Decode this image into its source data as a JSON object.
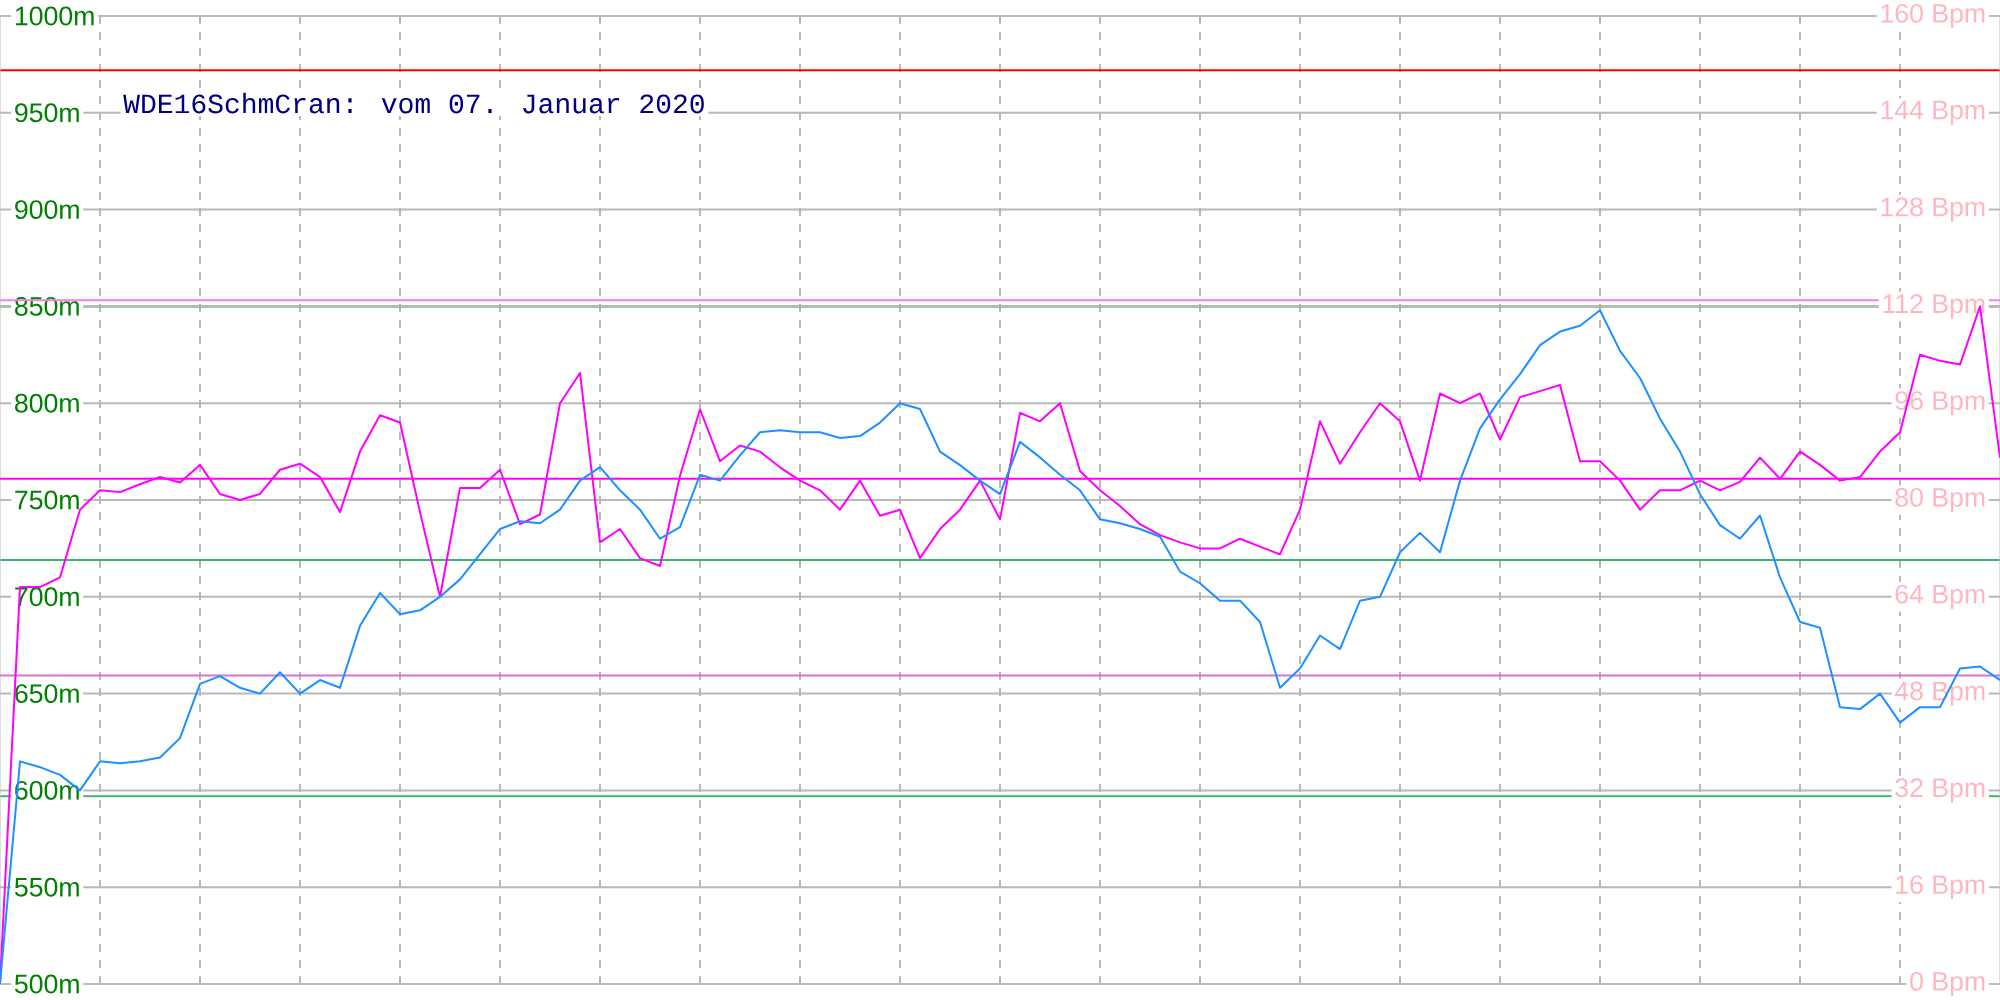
{
  "chart_data": {
    "type": "line",
    "title": "WDE16SchmCran: vom 07. Januar 2020",
    "categories": [
      null,
      null,
      null,
      null,
      null,
      null,
      null,
      null,
      null,
      null,
      null,
      null,
      null,
      null,
      null,
      null,
      null,
      null,
      null,
      null,
      null,
      null,
      null,
      null,
      null,
      null,
      null,
      null,
      null,
      null,
      null,
      null,
      null,
      null,
      null,
      null,
      null,
      null,
      null,
      null,
      null,
      null,
      null,
      null,
      null,
      null,
      null,
      null,
      null,
      null,
      null,
      null,
      null,
      null,
      null,
      null,
      null,
      null,
      null,
      null,
      null,
      null,
      null,
      null,
      null,
      null,
      null,
      null,
      null,
      null,
      null,
      null,
      null,
      null,
      null,
      null,
      null,
      null,
      null,
      null,
      null,
      null,
      null,
      null,
      null,
      null,
      null,
      null,
      null,
      null,
      null,
      null,
      null,
      null,
      null,
      null,
      null,
      null,
      null,
      null,
      null
    ],
    "ylim": [
      500,
      1000
    ],
    "yticks": [
      {
        "value": 500,
        "label": "500m"
      },
      {
        "value": 550,
        "label": "550m"
      },
      {
        "value": 600,
        "label": "600m"
      },
      {
        "value": 650,
        "label": "650m"
      },
      {
        "value": 700,
        "label": "700m"
      },
      {
        "value": 750,
        "label": "750m"
      },
      {
        "value": 800,
        "label": "800m"
      },
      {
        "value": 850,
        "label": "850m"
      },
      {
        "value": 900,
        "label": "900m"
      },
      {
        "value": 950,
        "label": "950m"
      },
      {
        "value": 1000,
        "label": "1000m"
      }
    ],
    "y2lim": [
      0,
      160
    ],
    "y2ticks": [
      {
        "value": 0,
        "label": "0 Bpm"
      },
      {
        "value": 16,
        "label": "16 Bpm"
      },
      {
        "value": 32,
        "label": "32 Bpm"
      },
      {
        "value": 48,
        "label": "48 Bpm"
      },
      {
        "value": 64,
        "label": "64 Bpm"
      },
      {
        "value": 80,
        "label": "80 Bpm"
      },
      {
        "value": 96,
        "label": "96 Bpm"
      },
      {
        "value": 112,
        "label": "112 Bpm"
      },
      {
        "value": 128,
        "label": "128 Bpm"
      },
      {
        "value": 144,
        "label": "144 Bpm"
      },
      {
        "value": 160,
        "label": "160 Bpm"
      }
    ],
    "grid": true,
    "ref_lines": [
      {
        "axis": "y",
        "value": 972,
        "color": "#ff0000"
      },
      {
        "axis": "y",
        "value": 850,
        "color": "#008000"
      },
      {
        "axis": "y2",
        "value": 113,
        "color": "#ee82ee"
      },
      {
        "axis": "y2",
        "value": 83.5,
        "color": "#ff00ff"
      },
      {
        "axis": "y",
        "value": 719,
        "color": "#3cb371"
      },
      {
        "axis": "y2",
        "value": 51,
        "color": "#da70d6"
      },
      {
        "axis": "y",
        "value": 597,
        "color": "#3cb371"
      }
    ],
    "series": [
      {
        "color": "#1e90ff",
        "axis": "y",
        "values": [
          500,
          615,
          612,
          608,
          600,
          615,
          614,
          615,
          617,
          627,
          655,
          659,
          653,
          650,
          661,
          650,
          657,
          653,
          685,
          702,
          691,
          693,
          700,
          709,
          722,
          735,
          739,
          738,
          745,
          760,
          767,
          755,
          745,
          730,
          736,
          763,
          760,
          773,
          785,
          786,
          785,
          785,
          782,
          783,
          790,
          800,
          797,
          775,
          768,
          760,
          753,
          780,
          772,
          763,
          755,
          740,
          738,
          735,
          731,
          713,
          707,
          698,
          698,
          687,
          653,
          663,
          680,
          673,
          698,
          700,
          723,
          733,
          723,
          760,
          787,
          802,
          815,
          830,
          837,
          840,
          848,
          827,
          813,
          792,
          775,
          753,
          737,
          730,
          742,
          710,
          687,
          684,
          643,
          642,
          650,
          635,
          643,
          643,
          663,
          664,
          657
        ]
      },
      {
        "color": "#ff00ff",
        "axis": "y2",
        "values": [
          0,
          65.6,
          65.6,
          67.2,
          78.4,
          81.6,
          81.3,
          82.6,
          83.8,
          82.9,
          85.8,
          81,
          80,
          81,
          85,
          86,
          83.8,
          78,
          88,
          94,
          92.8,
          78,
          64,
          82,
          82,
          85,
          76,
          77.6,
          96,
          101,
          73,
          75.2,
          70.4,
          69.1,
          84,
          95,
          86.4,
          89,
          88,
          85.4,
          83.2,
          81.6,
          78.4,
          83.2,
          77.4,
          78.4,
          70.4,
          75.2,
          78.4,
          83.2,
          76.8,
          94.4,
          93,
          96,
          84.8,
          81.6,
          79,
          76,
          74.2,
          73,
          72,
          72,
          73.6,
          72.3,
          71,
          78.4,
          93,
          86,
          91.2,
          96,
          93,
          83.2,
          97.6,
          96,
          97.6,
          90,
          97,
          98,
          99,
          86.4,
          86.4,
          83.2,
          78.4,
          81.6,
          81.6,
          83.2,
          81.6,
          83,
          87,
          83.5,
          88,
          85.8,
          83.2,
          83.8,
          88,
          91.2,
          104,
          103,
          102.4,
          112,
          87
        ]
      }
    ]
  }
}
